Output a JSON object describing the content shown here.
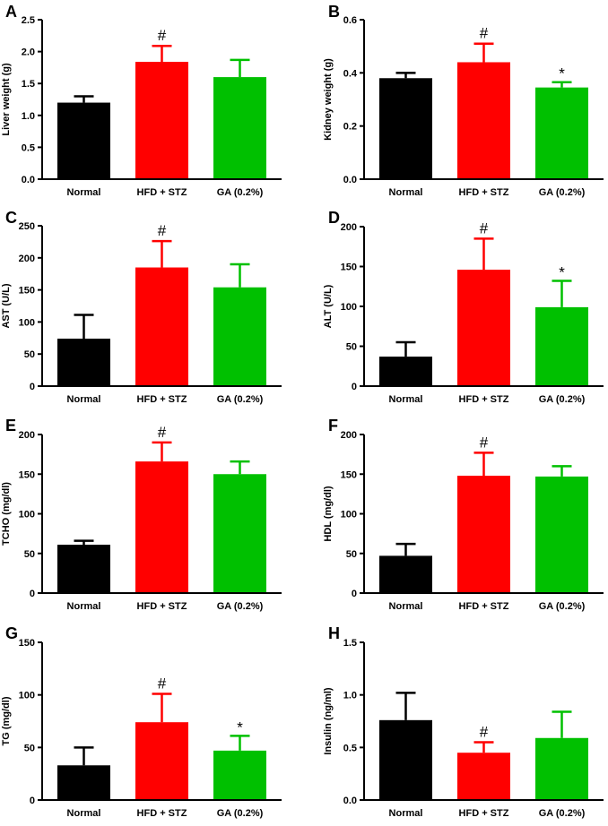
{
  "figure": {
    "colors": {
      "Normal": "#000000",
      "HFD + STZ": "#ff0000",
      "GA (0.2%)": "#00c000",
      "axis": "#000000"
    }
  },
  "chart_data": [
    {
      "panel": "A",
      "type": "bar",
      "ylabel": "Liver weight (g)",
      "categories": [
        "Normal",
        "HFD + STZ",
        "GA (0.2%)"
      ],
      "values": [
        1.2,
        1.84,
        1.6
      ],
      "errors": [
        0.1,
        0.25,
        0.27
      ],
      "significance": [
        "",
        "#",
        ""
      ],
      "ylim": [
        0,
        2.5
      ],
      "yticks": [
        0,
        0.5,
        1.0,
        1.5,
        2.0,
        2.5
      ],
      "decimals": 1
    },
    {
      "panel": "B",
      "type": "bar",
      "ylabel": "Kidney weight (g)",
      "categories": [
        "Normal",
        "HFD + STZ",
        "GA (0.2%)"
      ],
      "values": [
        0.38,
        0.44,
        0.345
      ],
      "errors": [
        0.02,
        0.07,
        0.02
      ],
      "significance": [
        "",
        "#",
        "*"
      ],
      "ylim": [
        0,
        0.6
      ],
      "yticks": [
        0,
        0.2,
        0.4,
        0.6
      ],
      "decimals": 1
    },
    {
      "panel": "C",
      "type": "bar",
      "ylabel": "AST (U/L)",
      "categories": [
        "Normal",
        "HFD + STZ",
        "GA (0.2%)"
      ],
      "values": [
        74,
        185,
        154
      ],
      "errors": [
        37,
        41,
        36
      ],
      "significance": [
        "",
        "#",
        ""
      ],
      "ylim": [
        0,
        250
      ],
      "yticks": [
        0,
        50,
        100,
        150,
        200,
        250
      ],
      "decimals": 0
    },
    {
      "panel": "D",
      "type": "bar",
      "ylabel": "ALT (U/L)",
      "categories": [
        "Normal",
        "HFD + STZ",
        "GA (0.2%)"
      ],
      "values": [
        37,
        146,
        99
      ],
      "errors": [
        18,
        39,
        33
      ],
      "significance": [
        "",
        "#",
        "*"
      ],
      "ylim": [
        0,
        200
      ],
      "yticks": [
        0,
        50,
        100,
        150,
        200
      ],
      "decimals": 0
    },
    {
      "panel": "E",
      "type": "bar",
      "ylabel": "TCHO (mg/dl)",
      "categories": [
        "Normal",
        "HFD + STZ",
        "GA (0.2%)"
      ],
      "values": [
        61,
        166,
        150
      ],
      "errors": [
        5,
        24,
        16
      ],
      "significance": [
        "",
        "#",
        ""
      ],
      "ylim": [
        0,
        200
      ],
      "yticks": [
        0,
        50,
        100,
        150,
        200
      ],
      "decimals": 0
    },
    {
      "panel": "F",
      "type": "bar",
      "ylabel": "HDL (mg/dl)",
      "categories": [
        "Normal",
        "HFD + STZ",
        "GA (0.2%)"
      ],
      "values": [
        47,
        148,
        147
      ],
      "errors": [
        15,
        29,
        13
      ],
      "significance": [
        "",
        "#",
        ""
      ],
      "ylim": [
        0,
        200
      ],
      "yticks": [
        0,
        50,
        100,
        150,
        200
      ],
      "decimals": 0
    },
    {
      "panel": "G",
      "type": "bar",
      "ylabel": "TG (mg/dl)",
      "categories": [
        "Normal",
        "HFD + STZ",
        "GA (0.2%)"
      ],
      "values": [
        33,
        74,
        47
      ],
      "errors": [
        17,
        27,
        14
      ],
      "significance": [
        "",
        "#",
        "*"
      ],
      "ylim": [
        0,
        150
      ],
      "yticks": [
        0,
        50,
        100,
        150
      ],
      "decimals": 0
    },
    {
      "panel": "H",
      "type": "bar",
      "ylabel": "Insulin (ng/ml)",
      "categories": [
        "Normal",
        "HFD + STZ",
        "GA (0.2%)"
      ],
      "values": [
        0.76,
        0.45,
        0.59
      ],
      "errors": [
        0.26,
        0.1,
        0.25
      ],
      "significance": [
        "",
        "#",
        ""
      ],
      "ylim": [
        0,
        1.5
      ],
      "yticks": [
        0,
        0.5,
        1.0,
        1.5
      ],
      "decimals": 1
    }
  ]
}
